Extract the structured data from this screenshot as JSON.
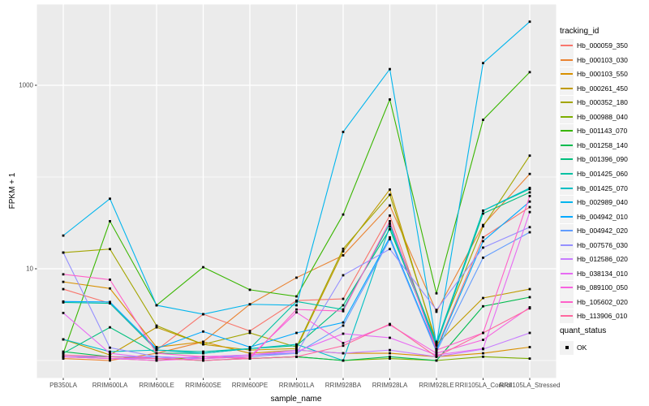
{
  "chart_data": {
    "type": "line",
    "title": "",
    "xlabel": "sample_name",
    "ylabel": "FPKM + 1",
    "y_scale": "log10",
    "y_major_ticks": [
      10,
      1000
    ],
    "y_major_tick_labels": [
      "10",
      "1000"
    ],
    "y_minor_gridlines": [
      1,
      100
    ],
    "ylim": [
      0.65,
      7500
    ],
    "panel_background": "#ebebeb",
    "gridline_color": "#ffffff",
    "point_color": "#000000",
    "legend_position": "right",
    "x_categories": [
      "PB350LA",
      "RRIM600LA",
      "RRIM600LE",
      "RRIM600SE",
      "RRIM600PE",
      "RRIM901LA",
      "RRIM928BA",
      "RRIM928LA",
      "RRIM928LE",
      "RRII105LA_Control",
      "RRII105LA_Stressed"
    ],
    "legend": {
      "title": "tracking_id"
    },
    "quant_legend": {
      "title": "quant_status",
      "items": [
        {
          "label": "OK",
          "marker": "black-point"
        }
      ]
    },
    "series": [
      {
        "name": "Hb_000059_350",
        "color": "#F8766D",
        "values": [
          6.0,
          4.2,
          1.3,
          3.2,
          2.1,
          4.5,
          4.7,
          38,
          1.35,
          22,
          47
        ]
      },
      {
        "name": "Hb_000103_030",
        "color": "#EA8331",
        "values": [
          1.05,
          1.0,
          1.2,
          1.6,
          4.1,
          8.0,
          14,
          49,
          3.4,
          30,
          108
        ]
      },
      {
        "name": "Hb_000103_550",
        "color": "#D89000",
        "values": [
          7.2,
          6.1,
          1.4,
          1.6,
          1.2,
          1.3,
          1.2,
          1.2,
          1.1,
          1.2,
          1.4
        ]
      },
      {
        "name": "Hb_000261_450",
        "color": "#C09B00",
        "values": [
          1.7,
          1.15,
          2.3,
          1.5,
          1.3,
          1.35,
          15.5,
          73,
          1.5,
          4.8,
          6.0
        ]
      },
      {
        "name": "Hb_000352_180",
        "color": "#A3A500",
        "values": [
          15,
          16.4,
          2.4,
          1.5,
          2.0,
          1.4,
          16.5,
          64,
          1.6,
          29,
          171
        ]
      },
      {
        "name": "Hb_000988_040",
        "color": "#7CAE00",
        "values": [
          1.1,
          1.05,
          1.0,
          1.1,
          1.05,
          1.1,
          1.0,
          1.05,
          1.0,
          1.1,
          1.05
        ]
      },
      {
        "name": "Hb_001143_070",
        "color": "#39B600",
        "values": [
          1.2,
          33,
          4.0,
          10.4,
          5.9,
          5.0,
          39,
          700,
          5.4,
          420,
          1390
        ]
      },
      {
        "name": "Hb_001258_140",
        "color": "#00BB4E",
        "values": [
          1.25,
          1.1,
          1.05,
          1.0,
          1.05,
          1.1,
          1.0,
          1.1,
          1.0,
          3.9,
          4.9
        ]
      },
      {
        "name": "Hb_001396_090",
        "color": "#00BF7D",
        "values": [
          1.2,
          2.3,
          1.2,
          1.2,
          1.35,
          1.45,
          4.0,
          27,
          1.5,
          40,
          68
        ]
      },
      {
        "name": "Hb_001425_060",
        "color": "#00C1A3",
        "values": [
          4.3,
          4.2,
          1.3,
          1.25,
          1.35,
          4.4,
          3.6,
          31,
          1.55,
          43,
          74
        ]
      },
      {
        "name": "Hb_001425_070",
        "color": "#00BFC4",
        "values": [
          1.7,
          1.25,
          1.3,
          1.2,
          1.35,
          1.5,
          1.0,
          29,
          1.45,
          43,
          76
        ]
      },
      {
        "name": "Hb_002989_040",
        "color": "#00B5ED",
        "values": [
          23,
          58,
          4.0,
          3.2,
          4.1,
          4.0,
          310,
          1500,
          1.5,
          1745,
          4930
        ]
      },
      {
        "name": "Hb_004942_010",
        "color": "#00A9FF",
        "values": [
          4.4,
          4.35,
          1.35,
          2.07,
          1.4,
          2.0,
          2.6,
          22,
          1.3,
          20,
          54
        ]
      },
      {
        "name": "Hb_004942_020",
        "color": "#619CFF",
        "values": [
          1.1,
          1.1,
          1.1,
          1.05,
          1.15,
          1.2,
          2.4,
          21,
          1.25,
          13.2,
          25
        ]
      },
      {
        "name": "Hb_007576_030",
        "color": "#9590FF",
        "values": [
          15,
          1.38,
          1.1,
          1.05,
          1.1,
          1.2,
          8.5,
          16.4,
          3.56,
          17,
          28.4
        ]
      },
      {
        "name": "Hb_012586_020",
        "color": "#C77CFF",
        "values": [
          1.1,
          1.05,
          1.05,
          1.1,
          1.15,
          1.3,
          1.2,
          1.3,
          1.1,
          1.33,
          2.0
        ]
      },
      {
        "name": "Hb_038134_010",
        "color": "#E76BF3",
        "values": [
          3.3,
          1.2,
          1.05,
          1.1,
          1.15,
          1.25,
          1.96,
          1.77,
          1.15,
          1.35,
          41.5
        ]
      },
      {
        "name": "Hb_089100_050",
        "color": "#F763E0",
        "values": [
          1.1,
          1.05,
          1.0,
          1.05,
          1.1,
          3.35,
          1.55,
          2.45,
          1.2,
          1.68,
          3.8
        ]
      },
      {
        "name": "Hb_105602_020",
        "color": "#FF61C9",
        "values": [
          8.7,
          7.6,
          1.2,
          1.1,
          1.05,
          3.6,
          3.45,
          33,
          1.3,
          2.0,
          62
        ]
      },
      {
        "name": "Hb_113906_010",
        "color": "#FF689F",
        "values": [
          1.15,
          1.1,
          1.05,
          1.0,
          1.05,
          1.1,
          1.45,
          2.5,
          1.1,
          2.0,
          3.7
        ]
      }
    ]
  }
}
